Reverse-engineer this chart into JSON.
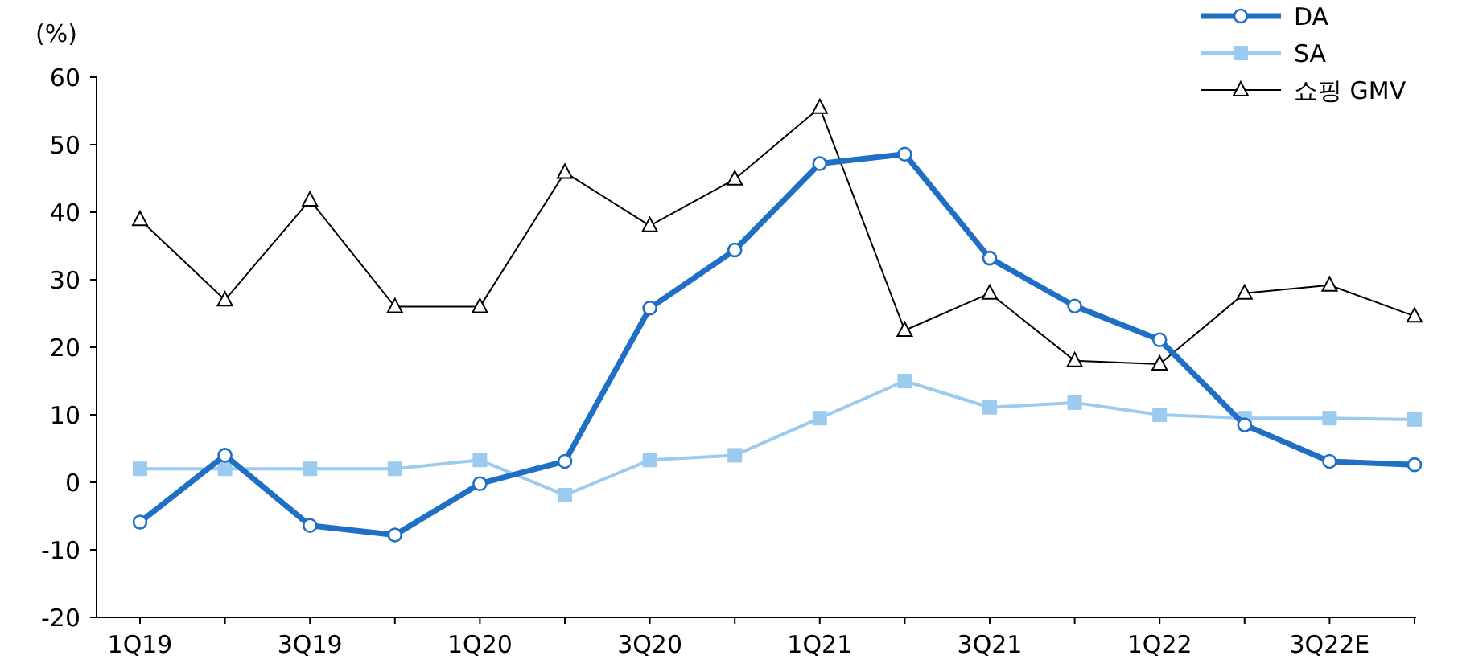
{
  "chart_data": {
    "type": "line",
    "ylabel": "(%)",
    "categories": [
      "1Q19",
      null,
      "3Q19",
      null,
      "1Q20",
      null,
      "3Q20",
      null,
      "1Q21",
      null,
      "3Q21",
      null,
      "1Q22",
      null,
      "3Q22E",
      null
    ],
    "series": [
      {
        "name": "DA",
        "color": "#1f6fc5",
        "marker": "circle",
        "values": [
          -5.9,
          4.0,
          -6.4,
          -7.8,
          -0.2,
          3.1,
          25.8,
          34.4,
          47.2,
          48.6,
          33.2,
          26.1,
          21.1,
          8.5,
          3.1,
          2.6
        ]
      },
      {
        "name": "SA",
        "color": "#9ccbf0",
        "marker": "square",
        "values": [
          2,
          2,
          2,
          2,
          3.3,
          -1.9,
          3.3,
          4,
          9.5,
          15,
          11.1,
          11.8,
          10,
          9.5,
          9.5,
          9.3
        ]
      },
      {
        "name": "쇼핑 GMV",
        "color": "#000000",
        "marker": "triangle",
        "values": [
          38.9,
          27,
          41.8,
          26,
          26,
          45.9,
          38,
          44.9,
          55.5,
          22.5,
          28,
          18,
          17.5,
          28,
          29.2,
          24.6
        ]
      }
    ],
    "ylim": [
      -20,
      60
    ],
    "yticks": [
      -20,
      -10,
      0,
      10,
      20,
      30,
      40,
      50,
      60
    ],
    "grid": false,
    "legend": "top right",
    "line_style": "solid"
  }
}
